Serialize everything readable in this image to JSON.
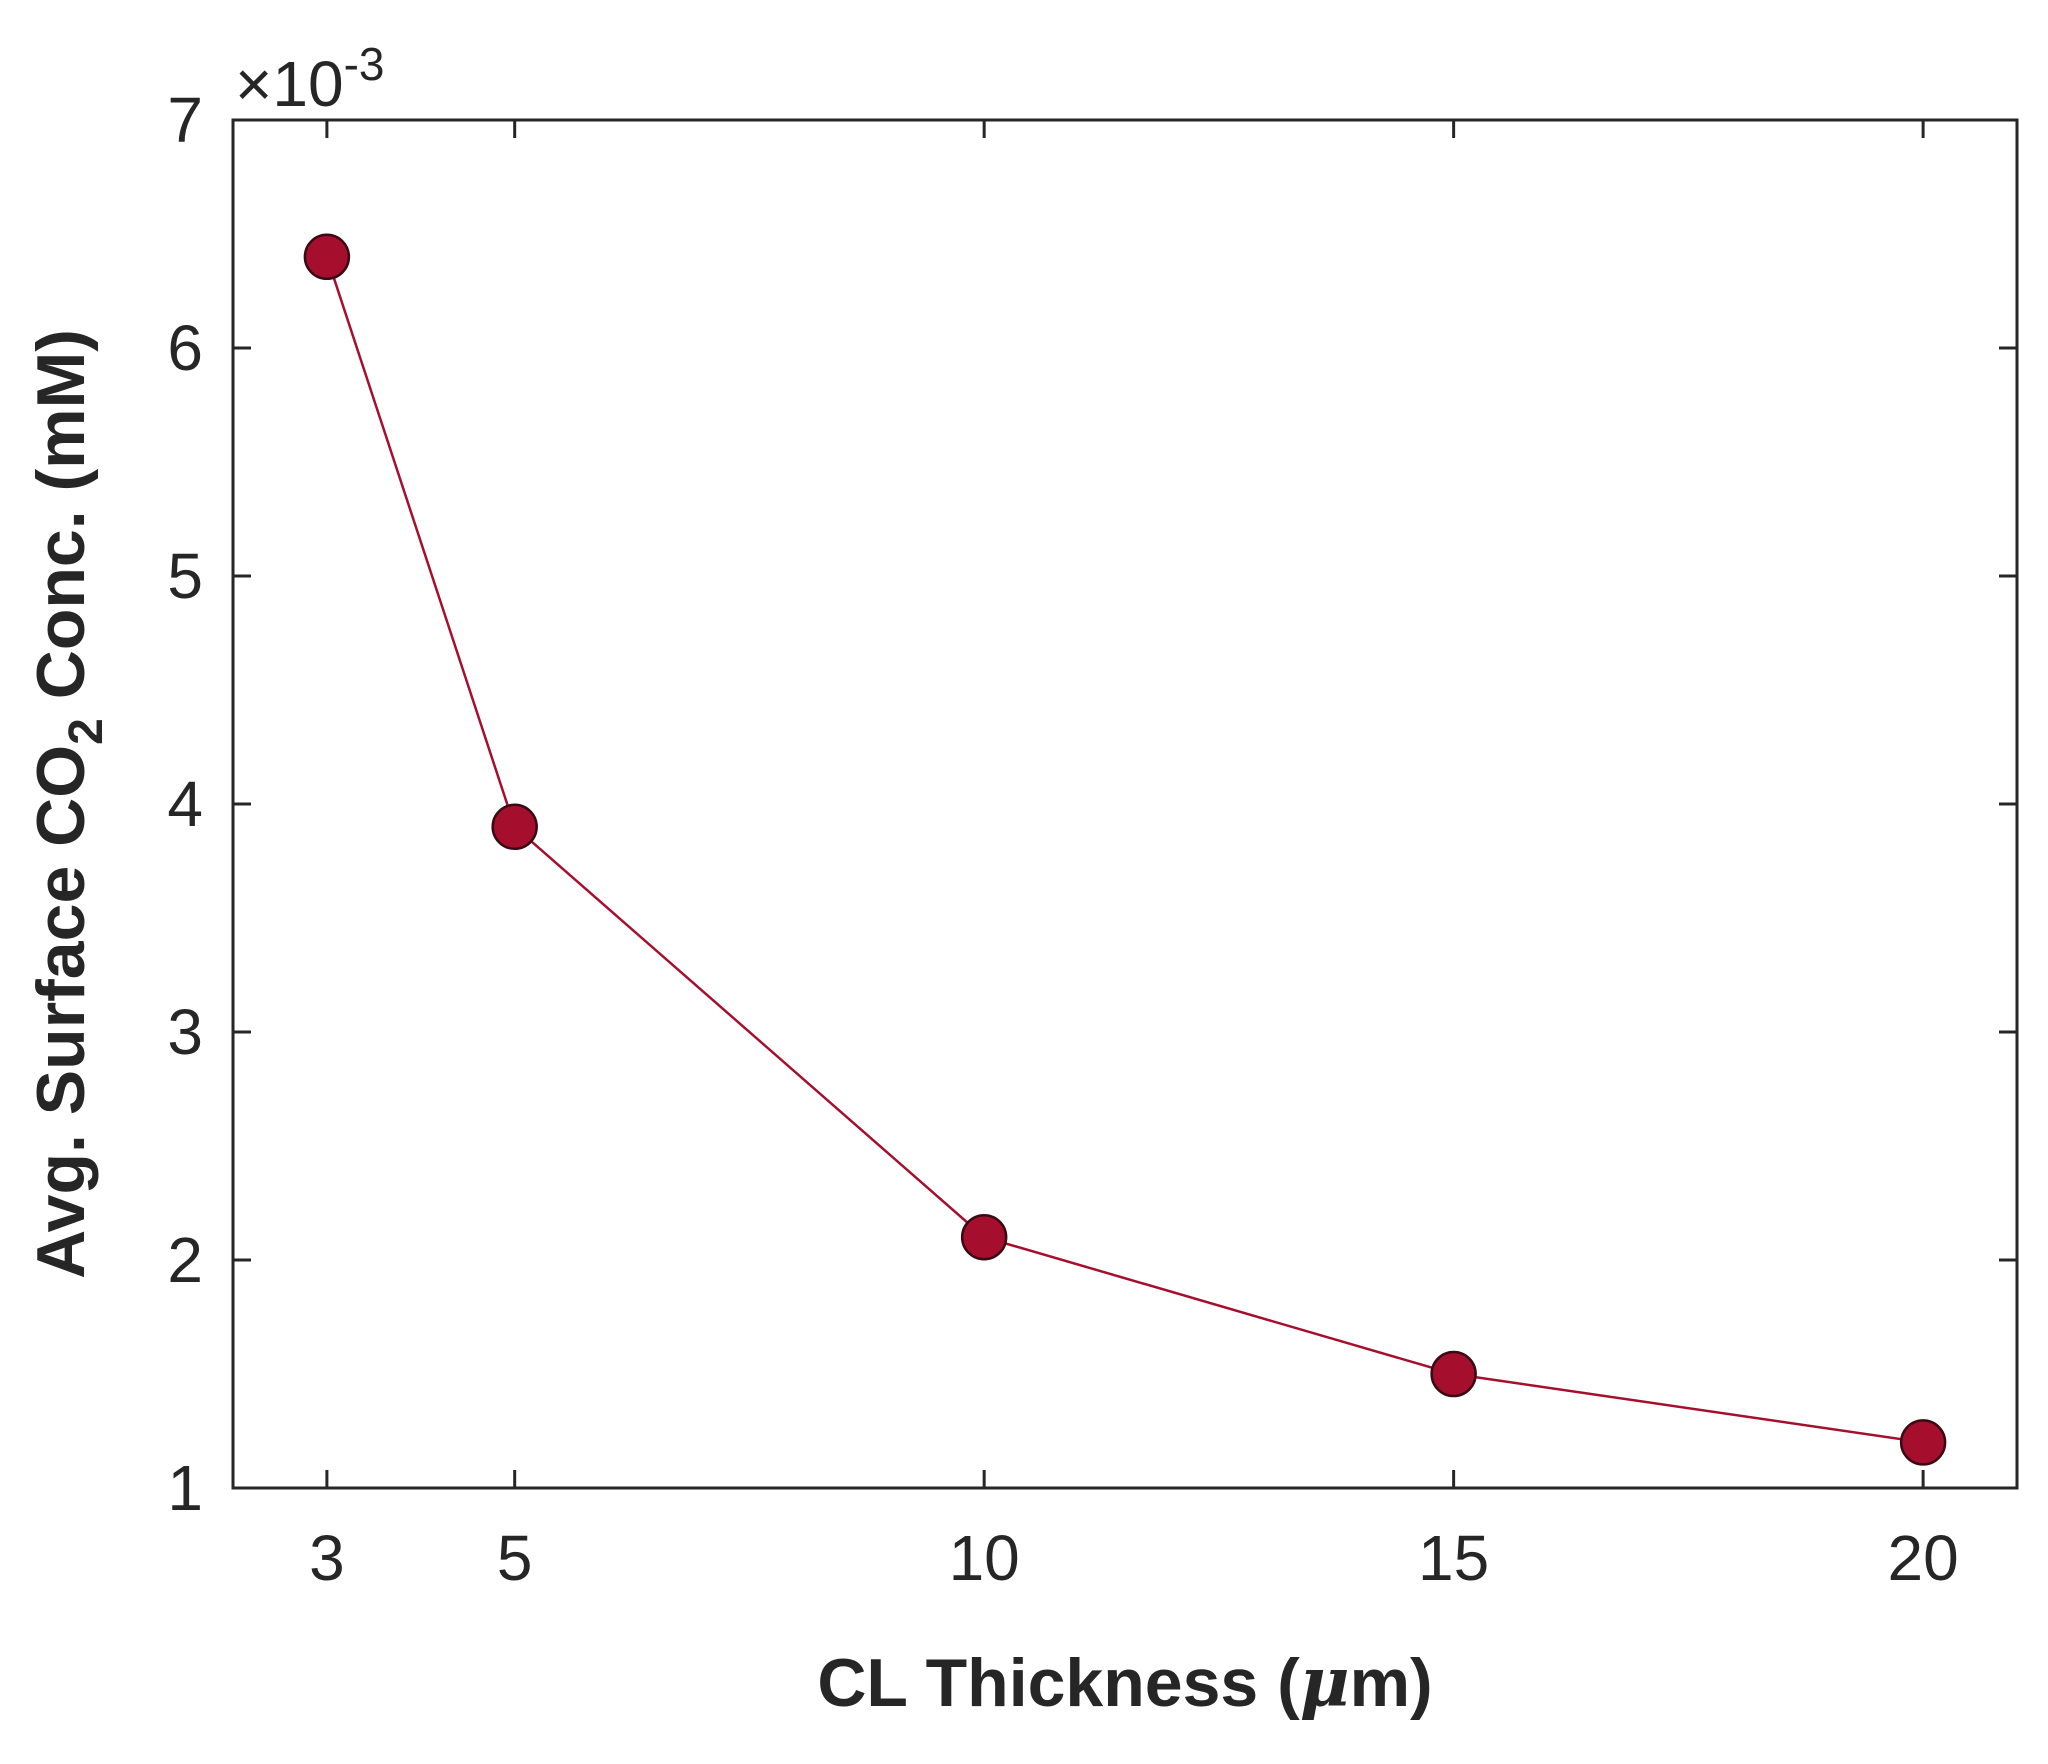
{
  "chart_data": {
    "type": "line",
    "title": "",
    "xlabel": "CL Thickness (μm)",
    "xlabel_parts": {
      "pre": "CL Thickness (",
      "mu": "μ",
      "post": "m)"
    },
    "ylabel": "Avg. Surface CO2 Conc. (mM)",
    "ylabel_parts": {
      "pre": "Avg. Surface CO",
      "sub": "2",
      "post": " Conc. (mM)"
    },
    "y_exponent": {
      "base": "×10",
      "power": "-3"
    },
    "x": [
      3,
      5,
      10,
      15,
      20
    ],
    "xlim": [
      2,
      21
    ],
    "ylim": [
      1,
      7
    ],
    "x_ticks": [
      3,
      5,
      10,
      15,
      20
    ],
    "x_tick_labels": [
      "3",
      "5",
      "10",
      "15",
      "20"
    ],
    "y_ticks": [
      1,
      2,
      3,
      4,
      5,
      6,
      7
    ],
    "y_tick_labels": [
      "1",
      "2",
      "3",
      "4",
      "5",
      "6",
      "7"
    ],
    "series": [
      {
        "name": "Avg. Surface CO2 Conc.",
        "values": [
          6.4,
          3.9,
          2.1,
          1.5,
          1.2
        ],
        "color": "#a50f2d",
        "marker": "circle",
        "marker_edge_color": "#3a0a14"
      }
    ],
    "grid": false,
    "legend": "none"
  }
}
